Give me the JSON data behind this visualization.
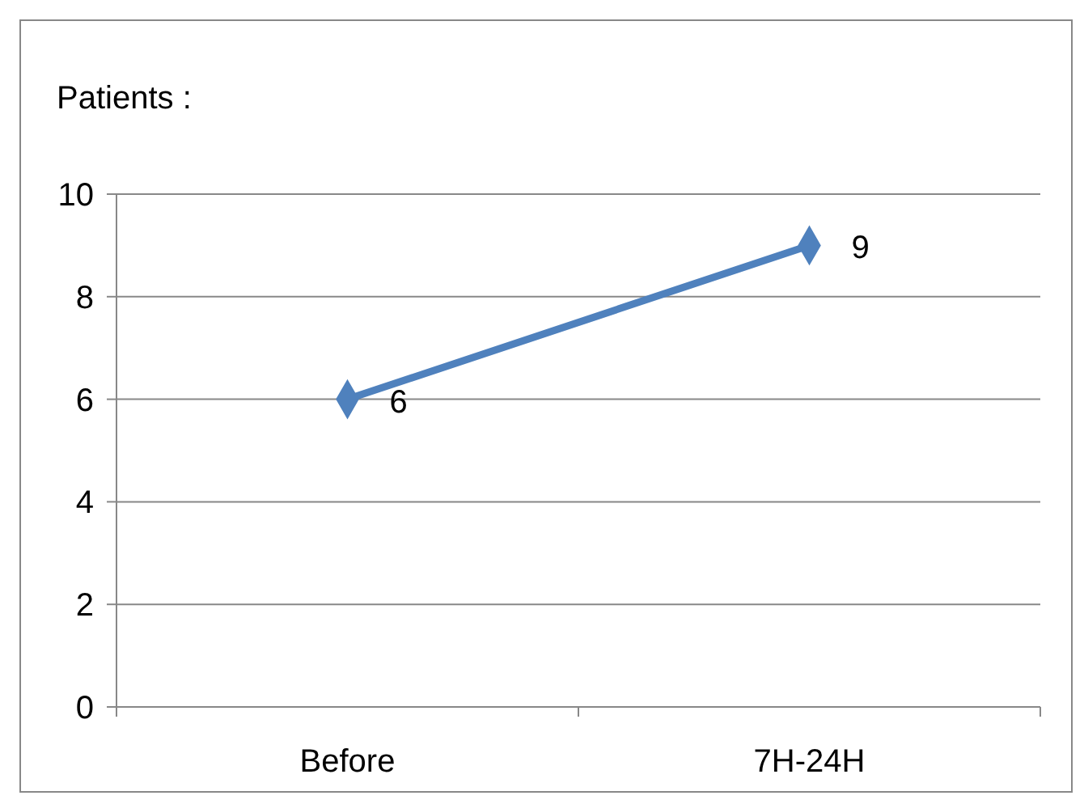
{
  "chart_data": {
    "type": "line",
    "title": "Patients :",
    "categories": [
      "Before",
      "7H-24H"
    ],
    "series": [
      {
        "color": "#4f81bd",
        "values": [
          6,
          9
        ]
      }
    ],
    "ylim": [
      0,
      10
    ],
    "yticks": [
      0,
      2,
      4,
      6,
      8,
      10
    ],
    "grid": "y",
    "marker": "diamond",
    "data_labels": true
  }
}
